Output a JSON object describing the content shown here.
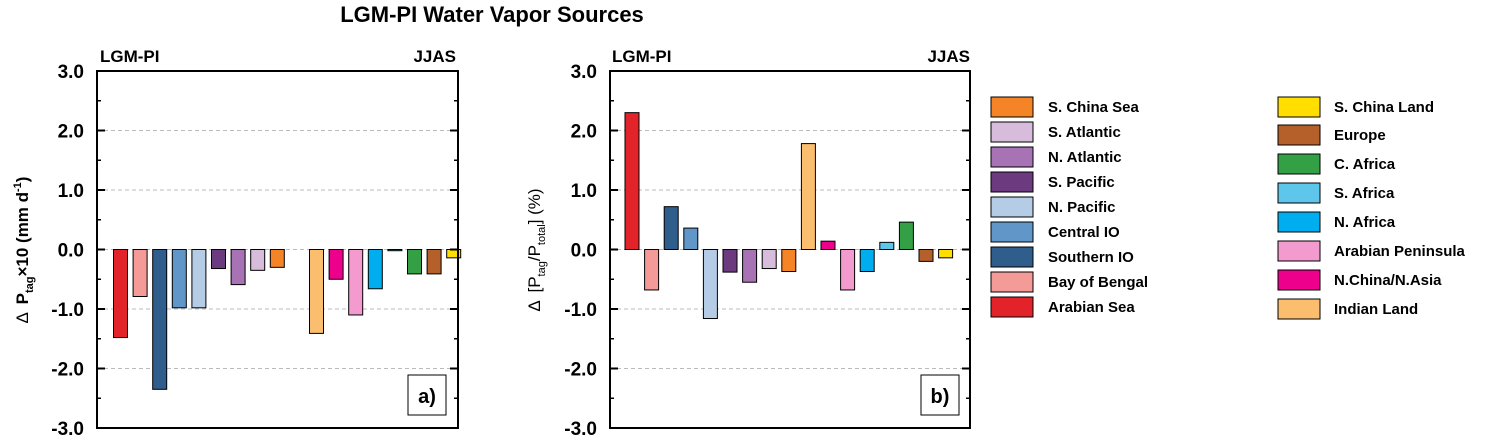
{
  "title": "LGM-PI Water Vapor Sources",
  "legend": {
    "col1": [
      {
        "label": "S. China Sea",
        "color": "#f58426"
      },
      {
        "label": "S. Atlantic",
        "color": "#d8bcdc"
      },
      {
        "label": "N. Atlantic",
        "color": "#a873b4"
      },
      {
        "label": "S. Pacific",
        "color": "#6c3b7f"
      },
      {
        "label": "N. Pacific",
        "color": "#b4cce6"
      },
      {
        "label": "Central IO",
        "color": "#6196c8"
      },
      {
        "label": "Southern IO",
        "color": "#2f5d8c"
      },
      {
        "label": "Bay of Bengal",
        "color": "#f49b98"
      },
      {
        "label": "Arabian Sea",
        "color": "#e2242a"
      }
    ],
    "col2": [
      {
        "label": "S. China Land",
        "color": "#ffde00"
      },
      {
        "label": "Europe",
        "color": "#b5602b"
      },
      {
        "label": "C. Africa",
        "color": "#34a046"
      },
      {
        "label": "S. Africa",
        "color": "#5ec6ea"
      },
      {
        "label": "N. Africa",
        "color": "#00aeef"
      },
      {
        "label": "Arabian Peninsula",
        "color": "#f39bcf"
      },
      {
        "label": "N.China/N.Asia",
        "color": "#ec008c"
      },
      {
        "label": "Indian Land",
        "color": "#fbbd6e"
      }
    ]
  },
  "chart_data": [
    {
      "type": "bar",
      "panel_label": "a)",
      "header_left": "LGM-PI",
      "header_right": "JJAS",
      "ylabel": {
        "delta": "Δ",
        "p": "P",
        "sub": "tag",
        "rest": "×10 (mm d",
        "sup": "-1",
        "close": ")"
      },
      "ylim": [
        -3.0,
        3.0
      ],
      "yticks": [
        "-3.0",
        "-2.0",
        "-1.0",
        "0.0",
        "1.0",
        "2.0",
        "3.0"
      ],
      "grid": "dashed",
      "categories": [
        "Arabian Sea",
        "Bay of Bengal",
        "Southern IO",
        "Central IO",
        "N. Pacific",
        "S. Pacific",
        "N. Atlantic",
        "S. Atlantic",
        "S. China Sea",
        "Indian Land",
        "N.China/N.Asia",
        "Arabian Peninsula",
        "N. Africa",
        "S. Africa",
        "C. Africa",
        "Europe",
        "S. China Land"
      ],
      "colors": [
        "#e2242a",
        "#f49b98",
        "#2f5d8c",
        "#6196c8",
        "#b4cce6",
        "#6c3b7f",
        "#a873b4",
        "#d8bcdc",
        "#f58426",
        "#fbbd6e",
        "#ec008c",
        "#f39bcf",
        "#00aeef",
        "#5ec6ea",
        "#34a046",
        "#b5602b",
        "#ffde00"
      ],
      "slots": [
        0,
        1,
        2,
        3,
        4,
        5,
        6,
        7,
        8,
        10,
        11,
        12,
        13,
        14,
        15,
        16,
        17
      ],
      "values": [
        -1.48,
        -0.79,
        -2.35,
        -0.98,
        -0.98,
        -0.32,
        -0.59,
        -0.35,
        -0.3,
        -1.41,
        -0.5,
        -1.1,
        -0.66,
        0.0,
        -0.41,
        -0.41,
        -0.14
      ]
    },
    {
      "type": "bar",
      "panel_label": "b)",
      "header_left": "LGM-PI",
      "header_right": "JJAS",
      "ylabel": {
        "delta": "Δ",
        "open": "[P",
        "sub": "tag",
        "mid": "/P",
        "sub2": "total",
        "rest": "] (%)"
      },
      "ylim": [
        -3.0,
        3.0
      ],
      "yticks": [
        "-3.0",
        "-2.0",
        "-1.0",
        "0.0",
        "1.0",
        "2.0",
        "3.0"
      ],
      "grid": "dashed",
      "categories": [
        "Arabian Sea",
        "Bay of Bengal",
        "Southern IO",
        "Central IO",
        "N. Pacific",
        "S. Pacific",
        "N. Atlantic",
        "S. Atlantic",
        "S. China Sea",
        "Indian Land",
        "N.China/N.Asia",
        "Arabian Peninsula",
        "N. Africa",
        "S. Africa",
        "C. Africa",
        "Europe",
        "S. China Land"
      ],
      "colors": [
        "#e2242a",
        "#f49b98",
        "#2f5d8c",
        "#6196c8",
        "#b4cce6",
        "#6c3b7f",
        "#a873b4",
        "#d8bcdc",
        "#f58426",
        "#fbbd6e",
        "#ec008c",
        "#f39bcf",
        "#00aeef",
        "#5ec6ea",
        "#34a046",
        "#b5602b",
        "#ffde00"
      ],
      "slots": [
        0,
        1,
        2,
        3,
        4,
        5,
        6,
        7,
        8,
        9,
        10,
        11,
        12,
        13,
        14,
        15,
        16
      ],
      "values": [
        2.3,
        -0.68,
        0.72,
        0.36,
        -1.16,
        -0.38,
        -0.55,
        -0.32,
        -0.37,
        1.78,
        0.14,
        -0.68,
        -0.37,
        0.12,
        0.46,
        -0.2,
        -0.14
      ]
    }
  ]
}
